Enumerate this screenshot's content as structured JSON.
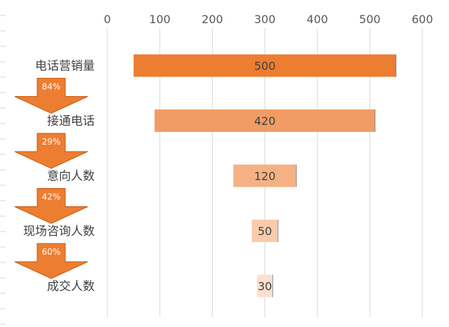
{
  "chart_data": {
    "type": "bar",
    "orientation": "horizontal",
    "style": "funnel",
    "categories": [
      "电话营销量",
      "接通电话",
      "意向人数",
      "现场咨询人数",
      "成交人数"
    ],
    "values": [
      500,
      420,
      120,
      50,
      30
    ],
    "value_labels": [
      "500",
      "420",
      "120",
      "50",
      "30"
    ],
    "conversion_labels": [
      "84%",
      "29%",
      "42%",
      "60%"
    ],
    "x_ticks": [
      "0",
      "100",
      "200",
      "300",
      "400",
      "500",
      "600"
    ],
    "xlim": [
      0,
      600
    ],
    "x_axis_position": "top",
    "grid": true,
    "legend": "none",
    "colors": {
      "bars": [
        "#ED7D31",
        "#F19C65",
        "#F4B183",
        "#F8CBAD",
        "#FBE0CF"
      ],
      "arrow": "#ED7D31",
      "gridline": "#D9D9D9",
      "sheet_gridline": "#D4D4D4"
    }
  }
}
